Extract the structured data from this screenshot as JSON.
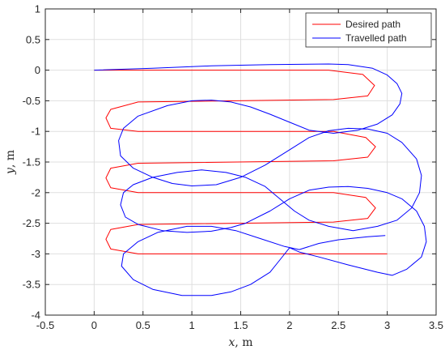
{
  "chart_data": {
    "type": "line",
    "title": "",
    "xlabel_var": "x",
    "xlabel_unit": ", m",
    "ylabel_var": "y",
    "ylabel_unit": ", m",
    "xlim": [
      -0.5,
      3.5
    ],
    "ylim": [
      -4,
      1
    ],
    "xticks": [
      -0.5,
      0,
      0.5,
      1,
      1.5,
      2,
      2.5,
      3,
      3.5
    ],
    "xtick_labels": [
      "-0.5",
      "0",
      "0.5",
      "1",
      "1.5",
      "2",
      "2.5",
      "3",
      "3.5"
    ],
    "yticks": [
      1,
      0.5,
      0,
      -0.5,
      -1,
      -1.5,
      -2,
      -2.5,
      -3,
      -3.5,
      -4
    ],
    "ytick_labels": [
      "1",
      "0.5",
      "0",
      "-0.5",
      "-1",
      "-1.5",
      "-2",
      "-2.5",
      "-3",
      "-3.5",
      "-4"
    ],
    "grid": true,
    "legend_position": "top-right",
    "series": [
      {
        "name": "Desired path",
        "color": "#ff0000",
        "points": [
          [
            0,
            0
          ],
          [
            2.4,
            0
          ],
          [
            2.75,
            -0.07
          ],
          [
            2.87,
            -0.25
          ],
          [
            2.8,
            -0.42
          ],
          [
            2.45,
            -0.48
          ],
          [
            0.45,
            -0.52
          ],
          [
            0.17,
            -0.64
          ],
          [
            0.12,
            -0.78
          ],
          [
            0.17,
            -0.95
          ],
          [
            0.45,
            -1.0
          ],
          [
            2.45,
            -1.0
          ],
          [
            2.78,
            -1.1
          ],
          [
            2.88,
            -1.25
          ],
          [
            2.8,
            -1.42
          ],
          [
            2.45,
            -1.48
          ],
          [
            0.45,
            -1.52
          ],
          [
            0.17,
            -1.6
          ],
          [
            0.12,
            -1.76
          ],
          [
            0.17,
            -1.92
          ],
          [
            0.45,
            -2.0
          ],
          [
            2.45,
            -2.0
          ],
          [
            2.78,
            -2.08
          ],
          [
            2.88,
            -2.25
          ],
          [
            2.8,
            -2.42
          ],
          [
            2.45,
            -2.48
          ],
          [
            0.45,
            -2.52
          ],
          [
            0.17,
            -2.6
          ],
          [
            0.12,
            -2.76
          ],
          [
            0.17,
            -2.92
          ],
          [
            0.45,
            -3.0
          ],
          [
            3.0,
            -3.0
          ]
        ]
      },
      {
        "name": "Travelled path",
        "color": "#0000ff",
        "points": [
          [
            0,
            0
          ],
          [
            0.6,
            0.03
          ],
          [
            1.2,
            0.07
          ],
          [
            1.8,
            0.09
          ],
          [
            2.4,
            0.1
          ],
          [
            2.6,
            0.09
          ],
          [
            2.85,
            0.03
          ],
          [
            3.0,
            -0.08
          ],
          [
            3.1,
            -0.22
          ],
          [
            3.15,
            -0.38
          ],
          [
            3.13,
            -0.55
          ],
          [
            3.05,
            -0.73
          ],
          [
            2.9,
            -0.88
          ],
          [
            2.7,
            -0.98
          ],
          [
            2.45,
            -1.03
          ],
          [
            2.2,
            -0.98
          ],
          [
            2.0,
            -0.85
          ],
          [
            1.8,
            -0.72
          ],
          [
            1.6,
            -0.6
          ],
          [
            1.4,
            -0.52
          ],
          [
            1.2,
            -0.49
          ],
          [
            1.0,
            -0.5
          ],
          [
            0.75,
            -0.58
          ],
          [
            0.45,
            -0.75
          ],
          [
            0.3,
            -0.95
          ],
          [
            0.25,
            -1.15
          ],
          [
            0.27,
            -1.4
          ],
          [
            0.4,
            -1.6
          ],
          [
            0.6,
            -1.75
          ],
          [
            0.8,
            -1.85
          ],
          [
            1.0,
            -1.89
          ],
          [
            1.25,
            -1.87
          ],
          [
            1.5,
            -1.75
          ],
          [
            1.75,
            -1.55
          ],
          [
            2.0,
            -1.3
          ],
          [
            2.2,
            -1.1
          ],
          [
            2.4,
            -0.99
          ],
          [
            2.6,
            -0.95
          ],
          [
            2.8,
            -0.96
          ],
          [
            3.0,
            -1.03
          ],
          [
            3.15,
            -1.18
          ],
          [
            3.3,
            -1.45
          ],
          [
            3.35,
            -1.72
          ],
          [
            3.33,
            -2.0
          ],
          [
            3.25,
            -2.25
          ],
          [
            3.1,
            -2.45
          ],
          [
            2.9,
            -2.55
          ],
          [
            2.65,
            -2.62
          ],
          [
            2.4,
            -2.55
          ],
          [
            2.2,
            -2.45
          ],
          [
            2.05,
            -2.3
          ],
          [
            1.9,
            -2.1
          ],
          [
            1.75,
            -1.9
          ],
          [
            1.55,
            -1.75
          ],
          [
            1.35,
            -1.67
          ],
          [
            1.1,
            -1.63
          ],
          [
            0.85,
            -1.67
          ],
          [
            0.6,
            -1.75
          ],
          [
            0.4,
            -1.87
          ],
          [
            0.3,
            -2.0
          ],
          [
            0.27,
            -2.2
          ],
          [
            0.32,
            -2.4
          ],
          [
            0.45,
            -2.52
          ],
          [
            0.7,
            -2.62
          ],
          [
            0.95,
            -2.65
          ],
          [
            1.2,
            -2.63
          ],
          [
            1.4,
            -2.57
          ],
          [
            1.55,
            -2.5
          ],
          [
            1.8,
            -2.3
          ],
          [
            2.0,
            -2.1
          ],
          [
            2.2,
            -1.96
          ],
          [
            2.4,
            -1.91
          ],
          [
            2.6,
            -1.9
          ],
          [
            2.8,
            -1.93
          ],
          [
            3.0,
            -2.0
          ],
          [
            3.15,
            -2.1
          ],
          [
            3.3,
            -2.3
          ],
          [
            3.38,
            -2.55
          ],
          [
            3.4,
            -2.8
          ],
          [
            3.35,
            -3.05
          ],
          [
            3.2,
            -3.25
          ],
          [
            3.05,
            -3.35
          ],
          [
            2.9,
            -3.3
          ],
          [
            2.6,
            -3.18
          ],
          [
            2.3,
            -3.05
          ],
          [
            2.1,
            -2.97
          ],
          [
            2.0,
            -2.9
          ],
          [
            1.9,
            -3.1
          ],
          [
            1.8,
            -3.3
          ],
          [
            1.6,
            -3.5
          ],
          [
            1.4,
            -3.62
          ],
          [
            1.2,
            -3.68
          ],
          [
            0.9,
            -3.68
          ],
          [
            0.6,
            -3.58
          ],
          [
            0.4,
            -3.42
          ],
          [
            0.28,
            -3.2
          ],
          [
            0.3,
            -3.0
          ],
          [
            0.45,
            -2.8
          ],
          [
            0.65,
            -2.65
          ],
          [
            0.95,
            -2.55
          ],
          [
            1.2,
            -2.55
          ],
          [
            1.45,
            -2.62
          ],
          [
            1.7,
            -2.75
          ],
          [
            1.95,
            -2.88
          ],
          [
            2.1,
            -2.93
          ],
          [
            2.3,
            -2.83
          ],
          [
            2.5,
            -2.77
          ],
          [
            2.8,
            -2.72
          ],
          [
            2.98,
            -2.7
          ]
        ]
      }
    ]
  }
}
